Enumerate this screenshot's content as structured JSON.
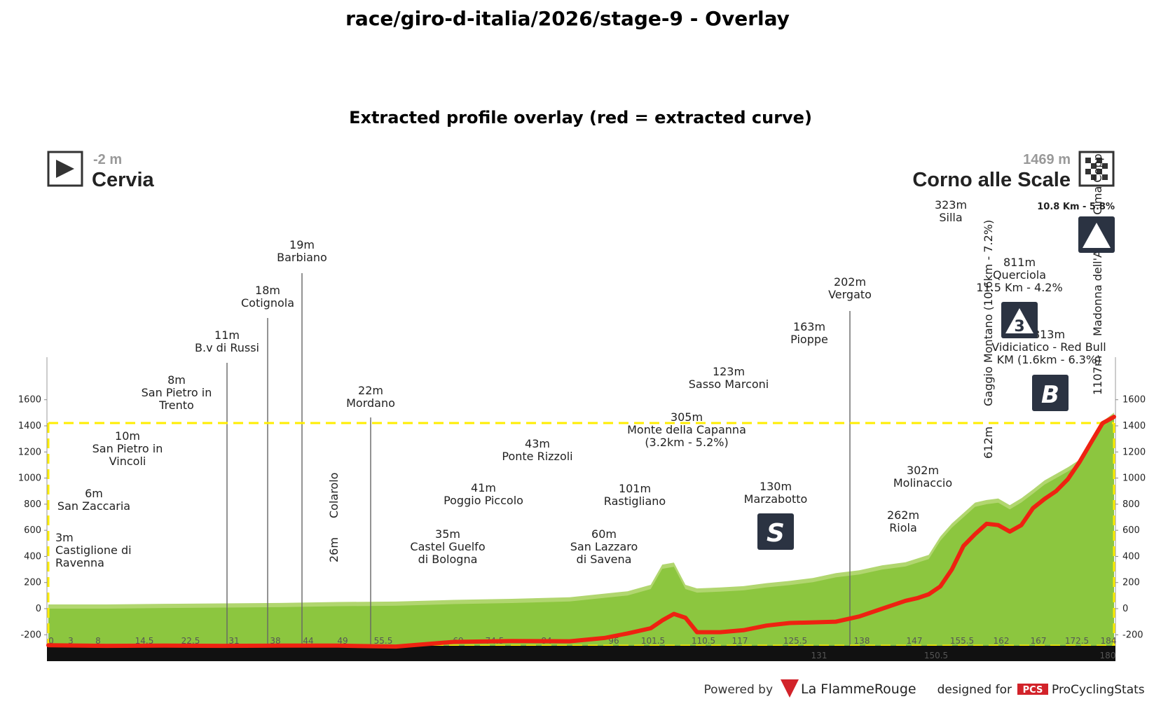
{
  "figure": {
    "title": "race/giro-d-italia/2026/stage-9 - Overlay",
    "subtitle": "Extracted profile overlay (red = extracted curve)"
  },
  "start": {
    "elevation": "-2 m",
    "name": "Cervia"
  },
  "finish": {
    "elevation": "1469 m",
    "name": "Corno alle Scale",
    "climb": "10.8 Km - 5.8%"
  },
  "places": [
    {
      "elev": "3m",
      "name": "Castiglione di",
      "name2": "Ravenna"
    },
    {
      "elev": "6m",
      "name": "San Zaccaria",
      "name2": ""
    },
    {
      "elev": "10m",
      "name": "San Pietro in",
      "name2": "Vincoli"
    },
    {
      "elev": "8m",
      "name": "San Pietro in",
      "name2": "Trento"
    },
    {
      "elev": "11m",
      "name": "B.v di Russi",
      "name2": ""
    },
    {
      "elev": "18m",
      "name": "Cotignola",
      "name2": ""
    },
    {
      "elev": "19m",
      "name": "Barbiano",
      "name2": ""
    },
    {
      "elev": "22m",
      "name": "Mordano",
      "name2": ""
    },
    {
      "elev": "35m",
      "name": "Castel Guelfo",
      "name2": "di Bologna"
    },
    {
      "elev": "41m",
      "name": "Poggio Piccolo",
      "name2": ""
    },
    {
      "elev": "43m",
      "name": "Ponte Rizzoli",
      "name2": ""
    },
    {
      "elev": "60m",
      "name": "San Lazzaro",
      "name2": "di Savena"
    },
    {
      "elev": "101m",
      "name": "Rastigliano",
      "name2": ""
    },
    {
      "elev": "305m",
      "name": "Monte della Capanna",
      "name2": "(3.2km - 5.2%)"
    },
    {
      "elev": "123m",
      "name": "Sasso Marconi",
      "name2": ""
    },
    {
      "elev": "130m",
      "name": "Marzabotto",
      "name2": ""
    },
    {
      "elev": "163m",
      "name": "Pioppe",
      "name2": ""
    },
    {
      "elev": "202m",
      "name": "Vergato",
      "name2": ""
    },
    {
      "elev": "262m",
      "name": "Riola",
      "name2": ""
    },
    {
      "elev": "302m",
      "name": "Molinaccio",
      "name2": ""
    },
    {
      "elev": "323m",
      "name": "Silla",
      "name2": ""
    },
    {
      "elev": "811m",
      "name": "Querciola",
      "name2": "11.5 Km - 4.2%"
    },
    {
      "elev": "813m",
      "name": "Vidiciatico - Red Bull",
      "name2": "KM (1.6km - 6.3%)"
    }
  ],
  "vertical_labels": {
    "colarolo": "Colarolo",
    "colarolo_elev": "26m",
    "gaggio": "Gaggio Montano (10.6km - 7.2%)",
    "gaggio_elev": "612m",
    "madonna": "Madonna dell'Acero - Cima Coppi",
    "madonna_elev": "1107m"
  },
  "badges": {
    "sprint": "S",
    "cat3": "3",
    "bonus": "B"
  },
  "km_ticks_top": [
    "0",
    "3",
    "8",
    "14.5",
    "22.5",
    "31",
    "38",
    "44",
    "49",
    "55.5",
    "69",
    "74.5",
    "84",
    "96",
    "101.5",
    "110.5",
    "117",
    "125.5",
    "138",
    "147",
    "155.5",
    "162",
    "167",
    "172.5",
    "184"
  ],
  "km_ticks_bottom": [
    "131",
    "150.5",
    "180"
  ],
  "footer": {
    "powered": "Powered by",
    "brand": "La FlammeRouge",
    "designed": "designed for",
    "pcs_logo": "PCS",
    "pcs": "ProCyclingStats"
  },
  "chart_data": {
    "type": "line",
    "title": "Extracted profile overlay (red = extracted curve)",
    "xlabel": "",
    "ylabel": "",
    "ylim": [
      -300,
      1800
    ],
    "y_ticks": [
      -200,
      0,
      200,
      400,
      600,
      800,
      1000,
      1200,
      1400,
      1600
    ],
    "reference_line": 1469,
    "series": [
      {
        "name": "extracted curve",
        "color": "#ee2211",
        "x": [
          0,
          10,
          20,
          30,
          40,
          50,
          60,
          70,
          80,
          90,
          96,
          100,
          104,
          106,
          108,
          110,
          112,
          116,
          120,
          124,
          128,
          132,
          136,
          140,
          144,
          148,
          150,
          152,
          154,
          156,
          158,
          160,
          162,
          164,
          166,
          168,
          170,
          172,
          174,
          176,
          178,
          180,
          182,
          184
        ],
        "y": [
          -280,
          -285,
          -283,
          -285,
          -283,
          -283,
          -290,
          -255,
          -248,
          -250,
          -225,
          -190,
          -150,
          -90,
          -40,
          -70,
          -180,
          -180,
          -165,
          -130,
          -110,
          -105,
          -100,
          -60,
          0,
          60,
          80,
          110,
          170,
          300,
          480,
          570,
          650,
          640,
          590,
          640,
          770,
          840,
          900,
          990,
          1120,
          1270,
          1420,
          1469
        ]
      },
      {
        "name": "profile",
        "color": "#8cc63f",
        "x": [
          0,
          10,
          20,
          30,
          40,
          50,
          60,
          70,
          80,
          90,
          100,
          104,
          106,
          108,
          110,
          112,
          116,
          120,
          124,
          128,
          132,
          136,
          140,
          144,
          148,
          152,
          154,
          156,
          158,
          160,
          162,
          164,
          166,
          168,
          170,
          172,
          174,
          176,
          178,
          180,
          182,
          184
        ],
        "y": [
          0,
          0,
          5,
          8,
          11,
          19,
          22,
          35,
          43,
          55,
          101,
          150,
          305,
          320,
          150,
          123,
          130,
          140,
          163,
          180,
          202,
          240,
          262,
          300,
          323,
          380,
          520,
          620,
          700,
          780,
          800,
          811,
          760,
          813,
          880,
          950,
          1000,
          1050,
          1107,
          1250,
          1400,
          1469
        ]
      }
    ]
  }
}
